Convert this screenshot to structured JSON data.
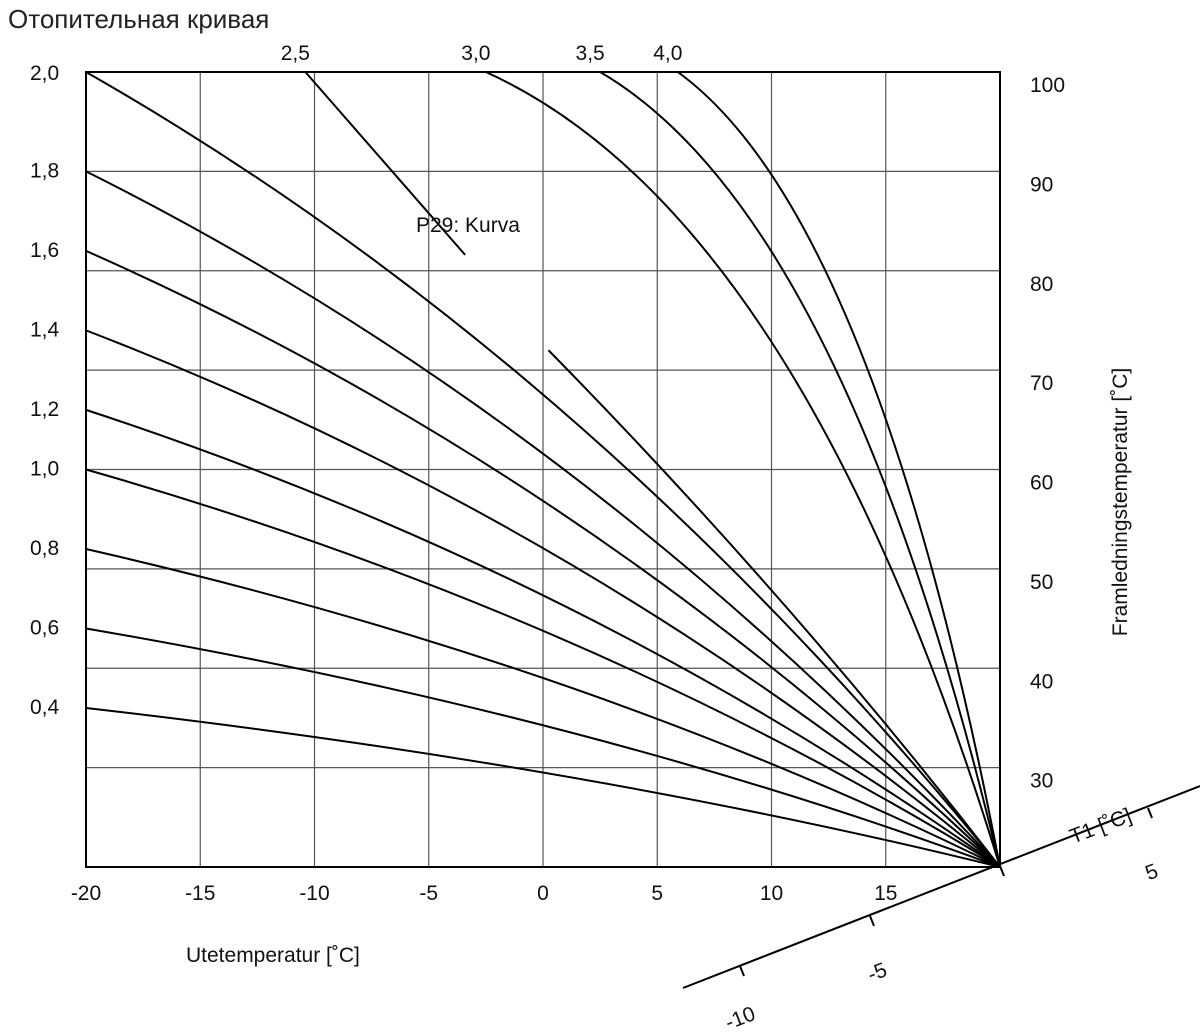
{
  "title": "Отопительная кривая",
  "chart_data": {
    "type": "line",
    "title": "",
    "xlabel": "Utetemperatur [˚C]",
    "ylabel": "Framledningstemperatur [˚C]",
    "annotation": "P29: Kurva",
    "xlim": [
      -20,
      20
    ],
    "ylim": [
      20,
      100
    ],
    "grid": true,
    "x_ticks": [
      "-20",
      "-15",
      "-10",
      "-5",
      "0",
      "5",
      "10",
      "15"
    ],
    "y_ticks": [
      "30",
      "40",
      "50",
      "60",
      "70",
      "80",
      "90",
      "100"
    ],
    "t1_axis": {
      "label": "T1 [˚C]",
      "ticks": [
        "-10",
        "-5",
        "5"
      ]
    },
    "series": [
      {
        "label": "0,4",
        "x": [
          -20,
          20
        ],
        "y": [
          36,
          20
        ]
      },
      {
        "label": "0,6",
        "x": [
          -20,
          20
        ],
        "y": [
          44,
          20
        ]
      },
      {
        "label": "0,8",
        "x": [
          -20,
          20
        ],
        "y": [
          52,
          20
        ]
      },
      {
        "label": "1,0",
        "x": [
          -20,
          20
        ],
        "y": [
          60,
          20
        ]
      },
      {
        "label": "1,2",
        "x": [
          -20,
          20
        ],
        "y": [
          66,
          20
        ]
      },
      {
        "label": "1,4",
        "x": [
          -20,
          20
        ],
        "y": [
          74,
          20
        ]
      },
      {
        "label": "1,6",
        "x": [
          -20,
          20
        ],
        "y": [
          82,
          20
        ]
      },
      {
        "label": "1,8",
        "x": [
          -20,
          20
        ],
        "y": [
          90,
          20
        ]
      },
      {
        "label": "2,0",
        "x": [
          -20,
          20
        ],
        "y": [
          100,
          20
        ]
      },
      {
        "label": "2,5",
        "x": [
          -10.4,
          20
        ],
        "y": [
          100,
          20
        ]
      },
      {
        "label": "3,0",
        "x": [
          -2.5,
          20
        ],
        "y": [
          100,
          20
        ]
      },
      {
        "label": "3,5",
        "x": [
          2.5,
          20
        ],
        "y": [
          100,
          20
        ]
      },
      {
        "label": "4,0",
        "x": [
          5.9,
          20
        ],
        "y": [
          100,
          20
        ]
      }
    ]
  }
}
